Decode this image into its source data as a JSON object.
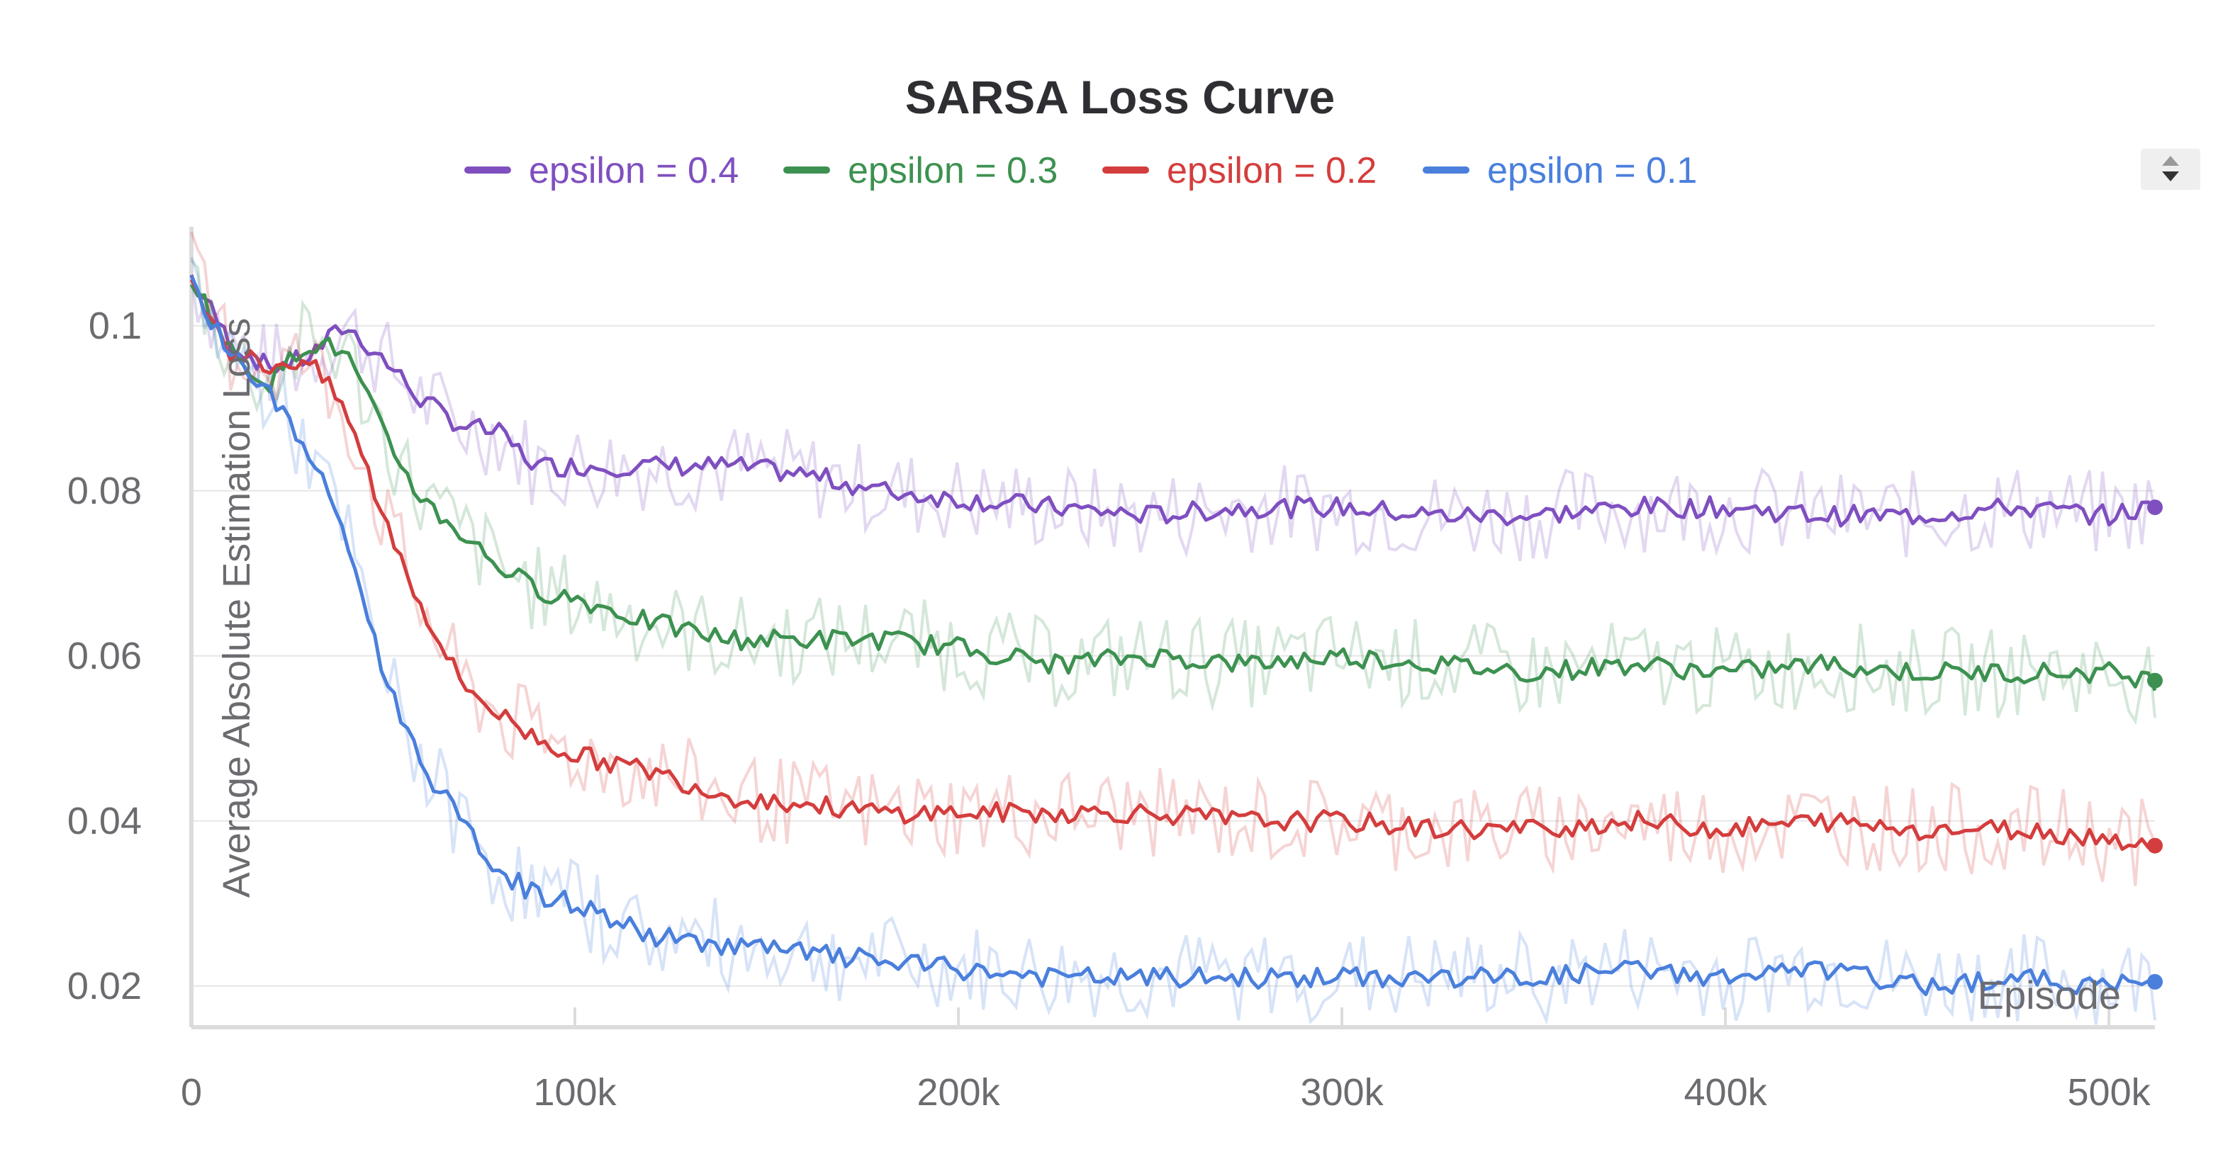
{
  "chart_data": {
    "type": "line",
    "title": "SARSA Loss Curve",
    "xlabel": "Episode",
    "ylabel": "Average Absolute Estimation Loss",
    "xlim": [
      0,
      512000
    ],
    "ylim": [
      0.015,
      0.112
    ],
    "x_ticks": [
      {
        "value": 0,
        "label": "0"
      },
      {
        "value": 100000,
        "label": "100k"
      },
      {
        "value": 200000,
        "label": "200k"
      },
      {
        "value": 300000,
        "label": "300k"
      },
      {
        "value": 400000,
        "label": "400k"
      },
      {
        "value": 500000,
        "label": "500k"
      }
    ],
    "y_ticks": [
      {
        "value": 0.02,
        "label": "0.02"
      },
      {
        "value": 0.04,
        "label": "0.04"
      },
      {
        "value": 0.06,
        "label": "0.06"
      },
      {
        "value": 0.08,
        "label": "0.08"
      },
      {
        "value": 0.1,
        "label": "0.1"
      }
    ],
    "grid": true,
    "legend_position": "top",
    "x": [
      0,
      10000,
      20000,
      30000,
      40000,
      50000,
      60000,
      70000,
      80000,
      90000,
      100000,
      120000,
      140000,
      160000,
      180000,
      200000,
      225000,
      250000,
      275000,
      300000,
      325000,
      350000,
      375000,
      400000,
      425000,
      450000,
      475000,
      500000,
      512000
    ],
    "series": [
      {
        "name": "epsilon = 0.4",
        "color": "#7f4fc0",
        "values": [
          0.106,
          0.098,
          0.095,
          0.096,
          0.1,
          0.096,
          0.091,
          0.088,
          0.087,
          0.083,
          0.083,
          0.083,
          0.083,
          0.082,
          0.08,
          0.079,
          0.078,
          0.077,
          0.078,
          0.078,
          0.077,
          0.077,
          0.078,
          0.078,
          0.077,
          0.077,
          0.078,
          0.077,
          0.078
        ]
      },
      {
        "name": "epsilon = 0.3",
        "color": "#3d9150",
        "values": [
          0.106,
          0.097,
          0.093,
          0.098,
          0.097,
          0.087,
          0.079,
          0.075,
          0.071,
          0.068,
          0.067,
          0.064,
          0.062,
          0.062,
          0.062,
          0.061,
          0.059,
          0.06,
          0.059,
          0.06,
          0.059,
          0.058,
          0.059,
          0.058,
          0.059,
          0.058,
          0.058,
          0.058,
          0.057
        ]
      },
      {
        "name": "epsilon = 0.2",
        "color": "#d43d3d",
        "values": [
          0.106,
          0.097,
          0.095,
          0.096,
          0.09,
          0.077,
          0.066,
          0.057,
          0.053,
          0.05,
          0.048,
          0.046,
          0.043,
          0.042,
          0.041,
          0.041,
          0.041,
          0.041,
          0.04,
          0.04,
          0.039,
          0.039,
          0.04,
          0.039,
          0.04,
          0.039,
          0.039,
          0.038,
          0.037
        ]
      },
      {
        "name": "epsilon = 0.1",
        "color": "#4a7fdc",
        "values": [
          0.105,
          0.097,
          0.092,
          0.085,
          0.075,
          0.058,
          0.047,
          0.04,
          0.034,
          0.031,
          0.03,
          0.026,
          0.025,
          0.024,
          0.023,
          0.022,
          0.021,
          0.021,
          0.021,
          0.021,
          0.021,
          0.021,
          0.022,
          0.021,
          0.022,
          0.02,
          0.021,
          0.02,
          0.0205
        ]
      }
    ]
  },
  "controls": {
    "legend_scroll_icon": "up-down-arrows-icon"
  }
}
